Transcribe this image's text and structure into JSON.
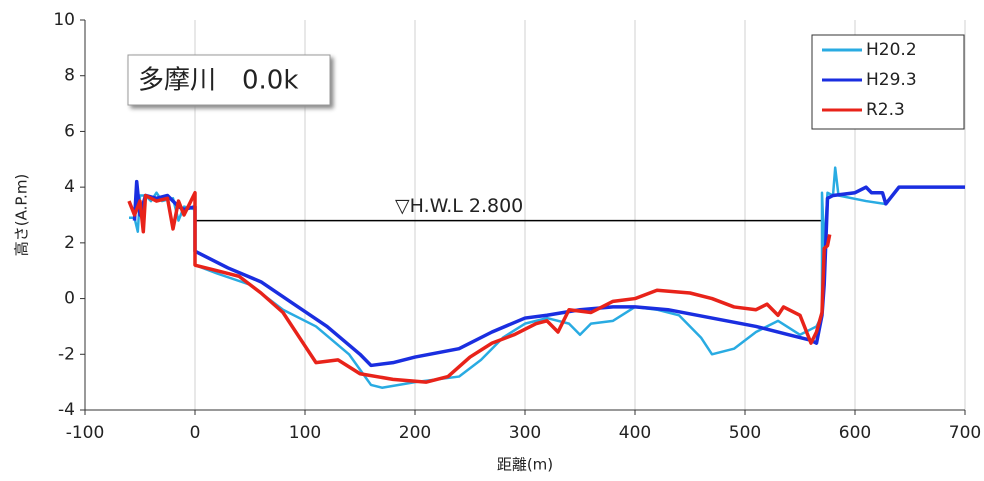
{
  "chart_data": {
    "type": "line",
    "title": "多摩川　0.0k",
    "x_label": "距離(m)",
    "y_label": "高さ(A.P.m)",
    "xlim": [
      -100,
      700
    ],
    "xticks": [
      -100,
      0,
      100,
      200,
      300,
      400,
      500,
      600,
      700
    ],
    "ylim": [
      -4,
      10
    ],
    "yticks": [
      -4,
      -2,
      0,
      2,
      4,
      6,
      8,
      10
    ],
    "grid": true,
    "legend": "upper right",
    "hwl": {
      "label": "▽H.W.L 2.800",
      "value": 2.8,
      "x": [
        0,
        570
      ]
    },
    "series": [
      {
        "name": "H20.2",
        "color": "#29abe2",
        "x": [
          -60,
          -55,
          -52,
          -50,
          -45,
          -40,
          -35,
          -30,
          -20,
          -15,
          -10,
          0,
          0,
          20,
          50,
          80,
          110,
          140,
          160,
          170,
          200,
          240,
          260,
          280,
          300,
          320,
          340,
          350,
          360,
          380,
          400,
          420,
          440,
          460,
          470,
          490,
          510,
          530,
          550,
          565,
          570,
          570,
          572,
          575,
          580,
          582,
          585,
          610,
          627
        ],
        "values": [
          2.9,
          2.9,
          2.4,
          3.7,
          3.7,
          3.5,
          3.8,
          3.5,
          3.6,
          2.8,
          3.3,
          3.2,
          1.2,
          0.9,
          0.5,
          -0.4,
          -1.0,
          -2.0,
          -3.1,
          -3.2,
          -3.0,
          -2.8,
          -2.2,
          -1.4,
          -0.9,
          -0.7,
          -0.9,
          -1.3,
          -0.9,
          -0.8,
          -0.3,
          -0.4,
          -0.6,
          -1.4,
          -2.0,
          -1.8,
          -1.2,
          -0.8,
          -1.3,
          -1.0,
          -0.6,
          3.8,
          1.8,
          3.8,
          3.7,
          4.7,
          3.7,
          3.5,
          3.4
        ]
      },
      {
        "name": "H29.3",
        "color": "#1a2ee0",
        "x": [
          -55,
          -53,
          -50,
          -45,
          -35,
          -25,
          -15,
          -10,
          0,
          0,
          30,
          60,
          90,
          120,
          150,
          160,
          180,
          200,
          240,
          270,
          300,
          320,
          350,
          380,
          400,
          430,
          470,
          510,
          540,
          560,
          565,
          570,
          572,
          575,
          580,
          600,
          610,
          615,
          625,
          628,
          640,
          700
        ],
        "values": [
          2.8,
          4.2,
          3.0,
          3.7,
          3.6,
          3.7,
          3.3,
          3.2,
          3.3,
          1.7,
          1.1,
          0.6,
          -0.2,
          -1.0,
          -2.0,
          -2.4,
          -2.3,
          -2.1,
          -1.8,
          -1.2,
          -0.7,
          -0.6,
          -0.4,
          -0.3,
          -0.3,
          -0.4,
          -0.7,
          -1.0,
          -1.3,
          -1.5,
          -1.6,
          -0.6,
          0.5,
          3.6,
          3.7,
          3.8,
          4.0,
          3.8,
          3.8,
          3.4,
          4.0,
          4.0
        ]
      },
      {
        "name": "R2.3",
        "color": "#e8231a",
        "x": [
          -60,
          -55,
          -50,
          -47,
          -45,
          -35,
          -25,
          -20,
          -15,
          -10,
          0,
          0,
          20,
          40,
          60,
          80,
          100,
          110,
          130,
          150,
          180,
          210,
          230,
          250,
          270,
          290,
          310,
          320,
          330,
          340,
          360,
          380,
          400,
          420,
          450,
          470,
          490,
          510,
          520,
          530,
          535,
          550,
          560,
          565,
          570,
          572,
          575,
          577
        ],
        "values": [
          3.5,
          3.0,
          3.5,
          2.4,
          3.7,
          3.5,
          3.6,
          2.5,
          3.5,
          3.0,
          3.8,
          1.2,
          1.0,
          0.8,
          0.2,
          -0.5,
          -1.7,
          -2.3,
          -2.2,
          -2.7,
          -2.9,
          -3.0,
          -2.8,
          -2.1,
          -1.6,
          -1.3,
          -0.9,
          -0.8,
          -1.2,
          -0.4,
          -0.5,
          -0.1,
          0.0,
          0.3,
          0.2,
          0.0,
          -0.3,
          -0.4,
          -0.2,
          -0.6,
          -0.3,
          -0.6,
          -1.6,
          -1.2,
          -0.5,
          1.8,
          1.9,
          2.3
        ]
      }
    ]
  }
}
